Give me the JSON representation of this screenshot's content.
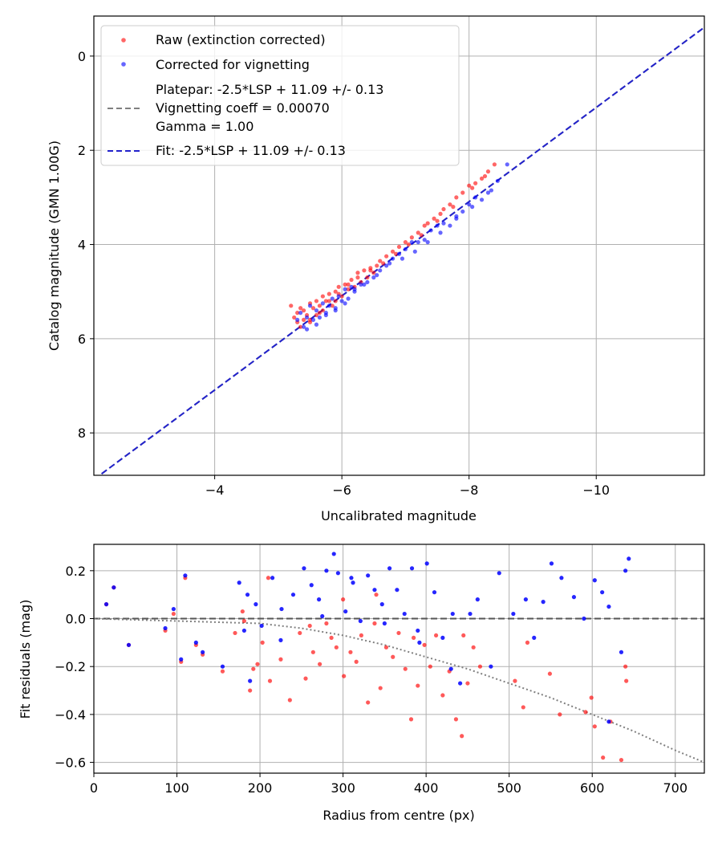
{
  "chart_data": [
    {
      "type": "scatter",
      "xlabel": "Uncalibrated magnitude",
      "ylabel": "Catalog magnitude (GMN 1.00G)",
      "xlim": [
        -2.1,
        -11.7
      ],
      "ylim": [
        8.9,
        -0.85
      ],
      "x_ticks": [
        -4,
        -6,
        -8,
        -10
      ],
      "x_tick_labels": [
        "−4",
        "−6",
        "−8",
        "−10"
      ],
      "y_ticks": [
        0,
        2,
        4,
        6,
        8
      ],
      "y_tick_labels": [
        "0",
        "2",
        "4",
        "6",
        "8"
      ],
      "grid": true,
      "legend_position": "top-left",
      "legend": {
        "raw": "Raw (extinction corrected)",
        "corrected": "Corrected for vignetting",
        "platepar_lines": [
          "Platepar: -2.5*LSP + 11.09 +/- 0.13",
          "Vignetting coeff = 0.00070",
          "Gamma = 1.00"
        ],
        "fit": "Fit: -2.5*LSP + 11.09 +/- 0.13"
      },
      "colors": {
        "raw": "#ff0000",
        "corrected": "#0000ff",
        "platepar_line": "#808080",
        "fit_line": "#2222cc"
      },
      "lines": {
        "platepar": {
          "slope": 1.0,
          "intercept": 11.09
        },
        "fit": {
          "slope": 1.0,
          "intercept": 11.09
        }
      },
      "series": [
        {
          "name": "Raw (extinction corrected)",
          "x": [
            -5.2,
            -5.25,
            -5.3,
            -5.3,
            -5.35,
            -5.4,
            -5.4,
            -5.45,
            -5.5,
            -5.5,
            -5.55,
            -5.6,
            -5.6,
            -5.65,
            -5.7,
            -5.7,
            -5.75,
            -5.8,
            -5.85,
            -5.9,
            -5.9,
            -5.95,
            -6.0,
            -6.05,
            -6.1,
            -6.15,
            -6.2,
            -6.25,
            -6.3,
            -6.35,
            -6.4,
            -6.45,
            -6.5,
            -6.55,
            -6.6,
            -6.7,
            -6.8,
            -6.9,
            -7.0,
            -7.1,
            -7.2,
            -7.3,
            -7.35,
            -7.45,
            -7.55,
            -7.6,
            -7.7,
            -7.8,
            -7.9,
            -8.0,
            -8.1,
            -8.2,
            -8.3,
            -8.4,
            -5.35,
            -5.5,
            -5.65,
            -5.8,
            -5.95,
            -6.1,
            -6.25,
            -6.45,
            -6.65,
            -6.85,
            -7.05,
            -7.25,
            -7.5,
            -7.75,
            -8.05,
            -8.25
          ],
          "y": [
            5.3,
            5.55,
            5.45,
            5.65,
            5.35,
            5.6,
            5.4,
            5.5,
            5.25,
            5.6,
            5.35,
            5.2,
            5.5,
            5.3,
            5.1,
            5.4,
            5.2,
            5.05,
            5.3,
            5.0,
            5.2,
            4.9,
            5.1,
            4.85,
            4.95,
            4.75,
            4.9,
            4.6,
            4.8,
            4.55,
            4.7,
            4.5,
            4.6,
            4.45,
            4.35,
            4.25,
            4.15,
            4.05,
            3.95,
            3.85,
            3.75,
            3.6,
            3.55,
            3.45,
            3.35,
            3.25,
            3.15,
            3.0,
            2.9,
            2.75,
            2.7,
            2.6,
            2.45,
            2.3,
            5.75,
            5.65,
            5.45,
            5.2,
            5.05,
            4.85,
            4.7,
            4.55,
            4.4,
            4.2,
            4.0,
            3.8,
            3.5,
            3.2,
            2.8,
            2.55
          ]
        },
        {
          "name": "Corrected for vignetting",
          "x": [
            -5.3,
            -5.35,
            -5.4,
            -5.45,
            -5.5,
            -5.55,
            -5.6,
            -5.65,
            -5.7,
            -5.75,
            -5.8,
            -5.85,
            -5.9,
            -5.95,
            -6.0,
            -6.05,
            -6.1,
            -6.15,
            -6.2,
            -6.3,
            -6.4,
            -6.5,
            -6.6,
            -6.7,
            -6.8,
            -6.9,
            -7.0,
            -7.1,
            -7.2,
            -7.3,
            -7.4,
            -7.5,
            -7.6,
            -7.7,
            -7.8,
            -7.9,
            -8.0,
            -8.1,
            -8.2,
            -8.3,
            -8.45,
            -8.6,
            -5.45,
            -5.6,
            -5.75,
            -5.9,
            -6.05,
            -6.2,
            -6.35,
            -6.55,
            -6.75,
            -6.95,
            -7.15,
            -7.35,
            -7.55,
            -7.8,
            -8.05,
            -8.35
          ],
          "y": [
            5.6,
            5.45,
            5.75,
            5.55,
            5.3,
            5.6,
            5.4,
            5.55,
            5.25,
            5.45,
            5.3,
            5.15,
            5.35,
            5.1,
            5.2,
            4.95,
            5.15,
            4.9,
            5.0,
            4.85,
            4.8,
            4.7,
            4.55,
            4.45,
            4.3,
            4.2,
            4.1,
            3.95,
            3.95,
            3.9,
            3.7,
            3.6,
            3.55,
            3.6,
            3.4,
            3.3,
            3.15,
            3.0,
            3.05,
            2.9,
            2.65,
            2.3,
            5.8,
            5.7,
            5.5,
            5.4,
            5.25,
            4.95,
            4.85,
            4.65,
            4.4,
            4.3,
            4.15,
            3.95,
            3.75,
            3.45,
            3.2,
            2.85
          ]
        }
      ]
    },
    {
      "type": "scatter",
      "xlabel": "Radius from centre (px)",
      "ylabel": "Fit residuals (mag)",
      "xlim": [
        0,
        735
      ],
      "ylim": [
        -0.645,
        0.31
      ],
      "x_ticks": [
        0,
        100,
        200,
        300,
        400,
        500,
        600,
        700
      ],
      "x_tick_labels": [
        "0",
        "100",
        "200",
        "300",
        "400",
        "500",
        "600",
        "700"
      ],
      "y_ticks": [
        0.2,
        0.0,
        -0.2,
        -0.4,
        -0.6
      ],
      "y_tick_labels": [
        "0.2",
        "0.0",
        "−0.2",
        "−0.4",
        "−0.6"
      ],
      "grid": true,
      "zero_line": 0.0,
      "vignetting_curve": {
        "coeff": 0.0007,
        "r": [
          0,
          100,
          200,
          250,
          300,
          350,
          400,
          450,
          500,
          550,
          600,
          650,
          700,
          735
        ],
        "y": [
          0.0,
          -0.01,
          -0.02,
          -0.04,
          -0.07,
          -0.11,
          -0.16,
          -0.21,
          -0.27,
          -0.33,
          -0.4,
          -0.47,
          -0.55,
          -0.6
        ]
      },
      "colors": {
        "raw": "#ff0000",
        "corrected": "#0000ff",
        "zero_line": "#555555",
        "curve": "#808080"
      },
      "series": [
        {
          "name": "Raw (extinction corrected)",
          "x": [
            15,
            24,
            42,
            86,
            96,
            105,
            110,
            123,
            131,
            155,
            170,
            181,
            188,
            192,
            197,
            203,
            212,
            225,
            236,
            248,
            255,
            264,
            272,
            280,
            286,
            292,
            301,
            309,
            316,
            322,
            330,
            338,
            345,
            352,
            360,
            367,
            375,
            382,
            390,
            398,
            405,
            412,
            420,
            428,
            436,
            443,
            450,
            457,
            465,
            507,
            517,
            522,
            549,
            561,
            592,
            603,
            613,
            622,
            635,
            641,
            599,
            640,
            179,
            210,
            260,
            300,
            340,
            385,
            445
          ],
          "y": [
            0.06,
            0.13,
            -0.11,
            -0.05,
            0.02,
            -0.18,
            0.17,
            -0.11,
            -0.15,
            -0.22,
            -0.06,
            -0.01,
            -0.3,
            -0.21,
            -0.19,
            -0.1,
            -0.26,
            -0.17,
            -0.34,
            -0.06,
            -0.25,
            -0.14,
            -0.19,
            -0.02,
            -0.08,
            -0.12,
            -0.24,
            -0.14,
            -0.18,
            -0.07,
            -0.35,
            -0.02,
            -0.29,
            -0.12,
            -0.16,
            -0.06,
            -0.21,
            -0.42,
            -0.28,
            -0.11,
            -0.2,
            -0.07,
            -0.32,
            -0.22,
            -0.42,
            -0.49,
            -0.27,
            -0.12,
            -0.2,
            -0.26,
            -0.37,
            -0.1,
            -0.23,
            -0.4,
            -0.39,
            -0.45,
            -0.58,
            -0.43,
            -0.59,
            -0.26,
            -0.33,
            -0.2,
            0.03,
            0.17,
            -0.03,
            0.08,
            0.1,
            -0.08,
            -0.07
          ]
        },
        {
          "name": "Corrected for vignetting",
          "x": [
            15,
            24,
            42,
            86,
            96,
            105,
            110,
            123,
            131,
            155,
            175,
            181,
            188,
            195,
            202,
            215,
            226,
            240,
            253,
            262,
            271,
            280,
            289,
            294,
            303,
            312,
            321,
            330,
            338,
            347,
            356,
            365,
            374,
            383,
            392,
            401,
            410,
            420,
            432,
            441,
            453,
            462,
            488,
            505,
            520,
            541,
            551,
            563,
            578,
            590,
            603,
            612,
            620,
            635,
            640,
            644,
            185,
            225,
            275,
            310,
            350,
            390,
            430,
            478,
            530,
            620
          ],
          "y": [
            0.06,
            0.13,
            -0.11,
            -0.04,
            0.04,
            -0.17,
            0.18,
            -0.1,
            -0.14,
            -0.2,
            0.15,
            -0.05,
            -0.26,
            0.06,
            -0.03,
            0.17,
            0.04,
            0.1,
            0.21,
            0.14,
            0.08,
            0.2,
            0.27,
            0.19,
            0.03,
            0.15,
            -0.01,
            0.18,
            0.12,
            0.06,
            0.21,
            0.12,
            0.02,
            0.21,
            -0.1,
            0.23,
            0.11,
            -0.08,
            0.02,
            -0.27,
            0.02,
            0.08,
            0.19,
            0.02,
            0.08,
            0.07,
            0.23,
            0.17,
            0.09,
            0.0,
            0.16,
            0.11,
            0.05,
            -0.14,
            0.2,
            0.25,
            0.1,
            -0.09,
            0.01,
            0.17,
            -0.02,
            -0.05,
            -0.21,
            -0.2,
            -0.08,
            -0.43
          ]
        }
      ]
    }
  ]
}
